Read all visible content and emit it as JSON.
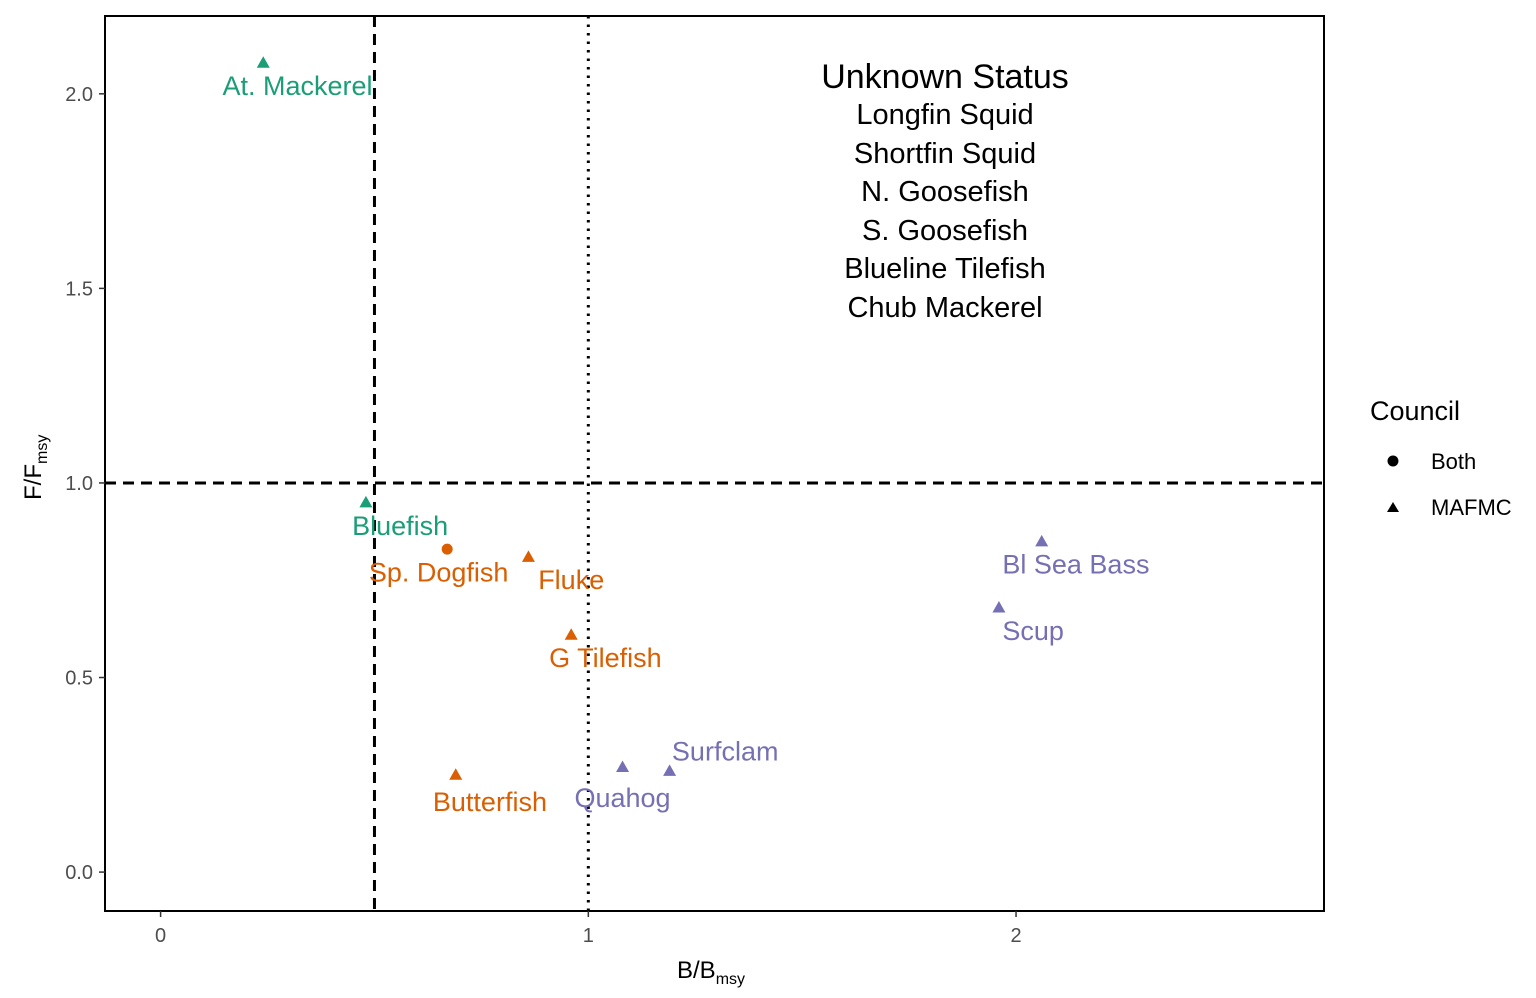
{
  "chart_data": {
    "type": "scatter",
    "xlabel": {
      "main": "B/B",
      "sub": "msy"
    },
    "ylabel": {
      "main": "F/F",
      "sub": "msy"
    },
    "xlim": [
      -0.13,
      2.72
    ],
    "ylim": [
      -0.1,
      2.2
    ],
    "x_ticks": [
      {
        "value": 0,
        "label": "0"
      },
      {
        "value": 1,
        "label": "1"
      },
      {
        "value": 2,
        "label": "2"
      }
    ],
    "y_ticks": [
      {
        "value": 0.0,
        "label": "0.0"
      },
      {
        "value": 0.5,
        "label": "0.5"
      },
      {
        "value": 1.0,
        "label": "1.0"
      },
      {
        "value": 1.5,
        "label": "1.5"
      },
      {
        "value": 2.0,
        "label": "2.0"
      }
    ],
    "grid": false,
    "reference_lines": [
      {
        "axis": "x",
        "value": 0.5,
        "style": "dashed"
      },
      {
        "axis": "x",
        "value": 1.0,
        "style": "dotted"
      },
      {
        "axis": "y",
        "value": 1.0,
        "style": "dashed"
      }
    ],
    "colors": {
      "green": "#1b9e77",
      "orange": "#d95f02",
      "purple": "#7570b3"
    },
    "points": [
      {
        "label": "At. Mackerel",
        "x": 0.24,
        "y": 2.08,
        "council": "MAFMC",
        "color": "#1b9e77",
        "label_x": 0.32,
        "label_y": 2.02
      },
      {
        "label": "Bluefish",
        "x": 0.48,
        "y": 0.95,
        "council": "MAFMC",
        "color": "#1b9e77",
        "label_x": 0.56,
        "label_y": 0.89
      },
      {
        "label": "Sp. Dogfish",
        "x": 0.67,
        "y": 0.83,
        "council": "Both",
        "color": "#d95f02",
        "label_x": 0.65,
        "label_y": 0.77
      },
      {
        "label": "Fluke",
        "x": 0.86,
        "y": 0.81,
        "council": "MAFMC",
        "color": "#d95f02",
        "label_x": 0.96,
        "label_y": 0.75
      },
      {
        "label": "G Tilefish",
        "x": 0.96,
        "y": 0.61,
        "council": "MAFMC",
        "color": "#d95f02",
        "label_x": 1.04,
        "label_y": 0.55
      },
      {
        "label": "Butterfish",
        "x": 0.69,
        "y": 0.25,
        "council": "MAFMC",
        "color": "#d95f02",
        "label_x": 0.77,
        "label_y": 0.18
      },
      {
        "label": "Quahog",
        "x": 1.08,
        "y": 0.27,
        "council": "MAFMC",
        "color": "#7570b3",
        "label_x": 1.08,
        "label_y": 0.19
      },
      {
        "label": "Surfclam",
        "x": 1.19,
        "y": 0.26,
        "council": "MAFMC",
        "color": "#7570b3",
        "label_x": 1.32,
        "label_y": 0.31
      },
      {
        "label": "Bl Sea Bass",
        "x": 2.06,
        "y": 0.85,
        "council": "MAFMC",
        "color": "#7570b3",
        "label_x": 2.14,
        "label_y": 0.79
      },
      {
        "label": "Scup",
        "x": 1.96,
        "y": 0.68,
        "council": "MAFMC",
        "color": "#7570b3",
        "label_x": 2.04,
        "label_y": 0.62
      }
    ],
    "annotation": {
      "title": "Unknown Status",
      "items": [
        "Longfin Squid",
        "Shortfin Squid",
        "N. Goosefish",
        "S. Goosefish",
        "Blueline Tilefish",
        "Chub Mackerel"
      ]
    },
    "legend": {
      "title": "Council",
      "position": "right",
      "entries": [
        {
          "label": "Both",
          "shape": "circle"
        },
        {
          "label": "MAFMC",
          "shape": "triangle"
        }
      ]
    }
  }
}
